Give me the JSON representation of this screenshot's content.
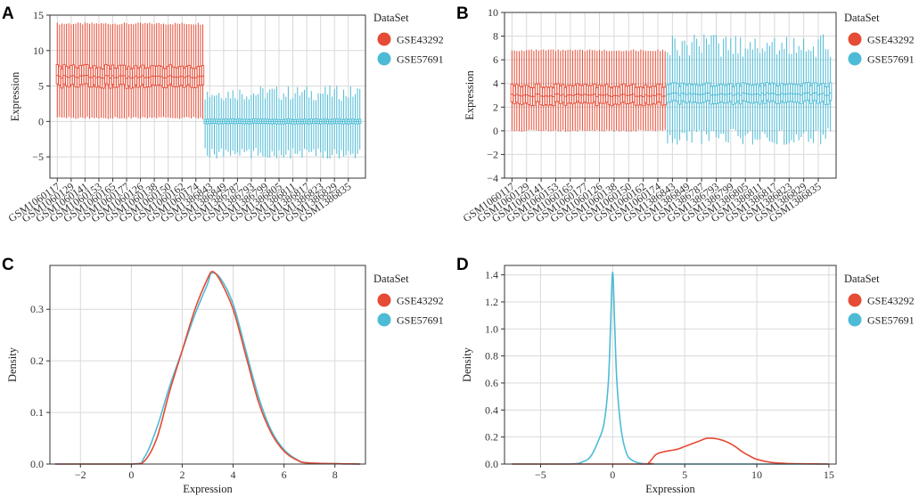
{
  "colors": {
    "GSE43292": "#e64b35",
    "GSE57691": "#4dbbd5"
  },
  "legend": {
    "title": "DataSet",
    "items": [
      "GSE43292",
      "GSE57691"
    ]
  },
  "chart_data": [
    {
      "panel": "A",
      "type": "box",
      "ylabel": "Expression",
      "ylim": [
        -8,
        15
      ],
      "yticks": [
        -5,
        0,
        5,
        10,
        15
      ],
      "shown_tick_labels": [
        "GSM1060117",
        "GSM1060129",
        "GSM1060141",
        "GSM1060153",
        "GSM1060165",
        "GSM1060177",
        "GSM1060126",
        "GSM1060138",
        "GSM1060150",
        "GSM1060162",
        "GSM1060174",
        "GSM1386843",
        "GSM1386849",
        "GSM1386787",
        "GSM1386793",
        "GSM1386799",
        "GSM1386805",
        "GSM1386811",
        "GSM1386817",
        "GSM1386823",
        "GSM1386829",
        "GSM1386835"
      ],
      "series": [
        {
          "name": "GSE43292",
          "n_samples": 64,
          "whisker_low": 0.5,
          "q1": 5.0,
          "median": 6.3,
          "q3": 7.7,
          "whisker_high": 13.8
        },
        {
          "name": "GSE57691",
          "n_samples": 68,
          "whisker_low": -4.5,
          "q1": -0.3,
          "median": 0.0,
          "q3": 0.3,
          "whisker_high": 4.0
        }
      ]
    },
    {
      "panel": "B",
      "type": "box",
      "ylabel": "Expression",
      "ylim": [
        -4,
        10
      ],
      "yticks": [
        -4,
        -2,
        0,
        2,
        4,
        6,
        8,
        10
      ],
      "shown_tick_labels": [
        "GSM1060117",
        "GSM1060129",
        "GSM1060141",
        "GSM1060153",
        "GSM1060165",
        "GSM1060177",
        "GSM1060126",
        "GSM1060138",
        "GSM1060150",
        "GSM1060162",
        "GSM1060174",
        "GSM1386843",
        "GSM1386849",
        "GSM1386787",
        "GSM1386793",
        "GSM1386799",
        "GSM1386805",
        "GSM1386811",
        "GSM1386817",
        "GSM1386823",
        "GSM1386829",
        "GSM1386835"
      ],
      "series": [
        {
          "name": "GSE43292",
          "n_samples": 64,
          "whisker_low": 0.0,
          "q1": 2.3,
          "median": 3.0,
          "q3": 3.8,
          "whisker_high": 6.8
        },
        {
          "name": "GSE57691",
          "n_samples": 68,
          "whisker_low": -0.5,
          "q1": 2.4,
          "median": 3.1,
          "q3": 3.9,
          "whisker_high": 7.2
        }
      ]
    },
    {
      "panel": "C",
      "type": "line",
      "xlabel": "Expression",
      "ylabel": "Density",
      "xlim": [
        -3.2,
        9.2
      ],
      "ylim": [
        0,
        0.385
      ],
      "xticks": [
        -2,
        0,
        2,
        4,
        6,
        8
      ],
      "yticks": [
        0.0,
        0.1,
        0.2,
        0.3
      ],
      "series": [
        {
          "name": "GSE43292",
          "x": [
            -3,
            0,
            0.5,
            1,
            1.5,
            2,
            2.5,
            3,
            3.2,
            3.5,
            4,
            4.5,
            5,
            5.5,
            6,
            6.5,
            7,
            9
          ],
          "y": [
            0,
            0,
            0.005,
            0.05,
            0.14,
            0.22,
            0.3,
            0.36,
            0.373,
            0.355,
            0.3,
            0.21,
            0.12,
            0.06,
            0.025,
            0.008,
            0.002,
            0
          ]
        },
        {
          "name": "GSE57691",
          "x": [
            -3,
            0,
            0.5,
            1,
            1.5,
            2,
            2.5,
            3,
            3.15,
            3.5,
            4,
            4.5,
            5,
            5.5,
            6,
            6.5,
            7,
            9
          ],
          "y": [
            0,
            0,
            0.012,
            0.07,
            0.15,
            0.22,
            0.29,
            0.35,
            0.37,
            0.36,
            0.31,
            0.22,
            0.13,
            0.065,
            0.028,
            0.009,
            0.002,
            0
          ]
        }
      ]
    },
    {
      "panel": "D",
      "type": "line",
      "xlabel": "Expression",
      "ylabel": "Density",
      "xlim": [
        -7.5,
        15.5
      ],
      "ylim": [
        0,
        1.47
      ],
      "xticks": [
        -5,
        0,
        5,
        10,
        15
      ],
      "yticks": [
        0.0,
        0.2,
        0.4,
        0.6,
        0.8,
        1.0,
        1.2,
        1.4
      ],
      "series": [
        {
          "name": "GSE43292",
          "x": [
            -7,
            2,
            2.5,
            3,
            3.5,
            4,
            4.5,
            5,
            5.5,
            6,
            6.5,
            7,
            7.5,
            8,
            8.5,
            9,
            9.5,
            10,
            11,
            12,
            13,
            14,
            15
          ],
          "y": [
            0,
            0,
            0.01,
            0.07,
            0.09,
            0.1,
            0.11,
            0.13,
            0.15,
            0.17,
            0.19,
            0.19,
            0.18,
            0.16,
            0.13,
            0.09,
            0.06,
            0.035,
            0.012,
            0.005,
            0.002,
            0.001,
            0
          ]
        },
        {
          "name": "GSE57691",
          "x": [
            -7,
            -3,
            -2,
            -1.5,
            -1,
            -0.6,
            -0.3,
            -0.15,
            0,
            0.15,
            0.3,
            0.6,
            1,
            1.5,
            2,
            2.5,
            3,
            15
          ],
          "y": [
            0,
            0,
            0.02,
            0.06,
            0.17,
            0.3,
            0.6,
            1.0,
            1.42,
            1.0,
            0.6,
            0.25,
            0.07,
            0.02,
            0.005,
            0.002,
            0,
            0
          ]
        }
      ]
    }
  ]
}
